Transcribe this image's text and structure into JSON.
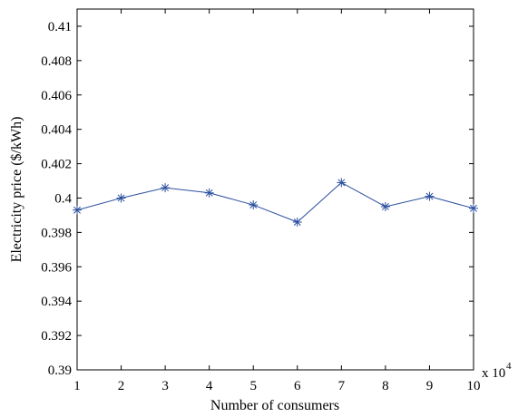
{
  "chart_data": {
    "type": "line",
    "title": "",
    "xlabel": "Number of consumers",
    "ylabel": "Electricity price ($/kWh)",
    "x_multiplier_label": "x 10",
    "x_multiplier_exponent": "4",
    "x_ticks": [
      "1",
      "2",
      "3",
      "4",
      "5",
      "6",
      "7",
      "8",
      "9",
      "10"
    ],
    "y_ticks": [
      "0.39",
      "0.392",
      "0.394",
      "0.396",
      "0.398",
      "0.4",
      "0.402",
      "0.404",
      "0.406",
      "0.408",
      "0.41"
    ],
    "xlim": [
      1,
      10
    ],
    "ylim": [
      0.39,
      0.411
    ],
    "grid": false,
    "legend": "none",
    "series": [
      {
        "x": [
          1,
          2,
          3,
          4,
          5,
          6,
          7,
          8,
          9,
          10
        ],
        "values": [
          0.3993,
          0.4,
          0.4006,
          0.4003,
          0.3996,
          0.3986,
          0.4009,
          0.3995,
          0.4001,
          0.3994
        ],
        "color": "#2b4f9e",
        "marker": "asterisk"
      }
    ]
  }
}
